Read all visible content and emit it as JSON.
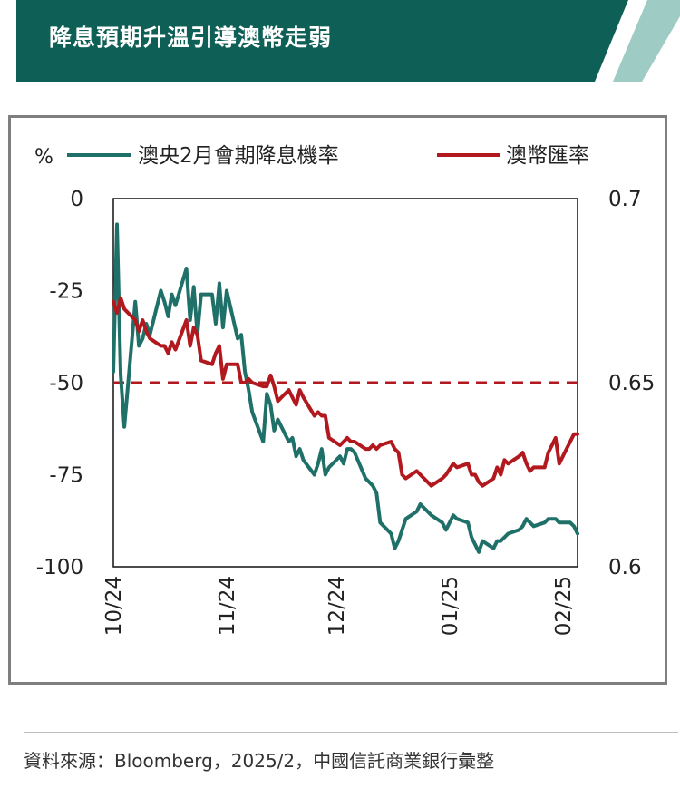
{
  "title": "降息預期升溫引導澳幣走弱",
  "source": "資料來源：Bloomberg，2025/2，中國信託商業銀行彙整",
  "colors": {
    "header_bg": "#0e5f56",
    "header_accent": "#9ecbc4",
    "series1": "#1f7068",
    "series2": "#b2191e",
    "reference_line": "#b2191e"
  },
  "chart_data": {
    "type": "line",
    "left_axis_unit": "%",
    "left_axis": {
      "ylim": [
        -100,
        0
      ],
      "ticks": [
        "0",
        "-25",
        "-50",
        "-75",
        "-100"
      ],
      "tick_values": [
        0,
        -25,
        -50,
        -75,
        -100
      ]
    },
    "right_axis": {
      "ylim": [
        0.6,
        0.7
      ],
      "ticks": [
        "0.7",
        "0.65",
        "0.6"
      ],
      "tick_values": [
        0.7,
        0.65,
        0.6
      ]
    },
    "x_ticks": [
      "10/24",
      "11/24",
      "12/24",
      "01/25",
      "02/25"
    ],
    "x_tick_dates": [
      "2024-10-01",
      "2024-11-01",
      "2024-12-01",
      "2025-01-01",
      "2025-02-01"
    ],
    "x_range": [
      "2024-10-01",
      "2025-02-05"
    ],
    "reference_line": {
      "axis": "left",
      "value": -50,
      "style": "dashed"
    },
    "series": [
      {
        "name": "澳央2月會期降息機率",
        "axis": "left",
        "x": [
          "2024-10-01",
          "2024-10-02",
          "2024-10-03",
          "2024-10-04",
          "2024-10-07",
          "2024-10-08",
          "2024-10-09",
          "2024-10-10",
          "2024-10-11",
          "2024-10-14",
          "2024-10-15",
          "2024-10-16",
          "2024-10-17",
          "2024-10-18",
          "2024-10-21",
          "2024-10-22",
          "2024-10-23",
          "2024-10-24",
          "2024-10-25",
          "2024-10-28",
          "2024-10-29",
          "2024-10-30",
          "2024-10-31",
          "2024-11-01",
          "2024-11-04",
          "2024-11-05",
          "2024-11-06",
          "2024-11-07",
          "2024-11-08",
          "2024-11-11",
          "2024-11-12",
          "2024-11-13",
          "2024-11-14",
          "2024-11-15",
          "2024-11-18",
          "2024-11-19",
          "2024-11-20",
          "2024-11-21",
          "2024-11-22",
          "2024-11-25",
          "2024-11-26",
          "2024-11-27",
          "2024-11-28",
          "2024-11-29",
          "2024-12-02",
          "2024-12-03",
          "2024-12-04",
          "2024-12-05",
          "2024-12-06",
          "2024-12-09",
          "2024-12-10",
          "2024-12-11",
          "2024-12-12",
          "2024-12-13",
          "2024-12-16",
          "2024-12-17",
          "2024-12-18",
          "2024-12-19",
          "2024-12-20",
          "2024-12-23",
          "2024-12-24",
          "2024-12-27",
          "2024-12-30",
          "2024-12-31",
          "2025-01-02",
          "2025-01-03",
          "2025-01-06",
          "2025-01-07",
          "2025-01-08",
          "2025-01-09",
          "2025-01-10",
          "2025-01-13",
          "2025-01-14",
          "2025-01-15",
          "2025-01-16",
          "2025-01-17",
          "2025-01-20",
          "2025-01-21",
          "2025-01-22",
          "2025-01-23",
          "2025-01-24",
          "2025-01-27",
          "2025-01-28",
          "2025-01-29",
          "2025-01-30",
          "2025-01-31",
          "2025-02-03",
          "2025-02-04",
          "2025-02-05"
        ],
        "values": [
          -47,
          -7,
          -48,
          -62,
          -28,
          -40,
          -38,
          -34,
          -37,
          -25,
          -28,
          -32,
          -26,
          -29,
          -19,
          -33,
          -24,
          -37,
          -26,
          -26,
          -34,
          -23,
          -35,
          -25,
          -38,
          -37,
          -47,
          -52,
          -58,
          -66,
          -53,
          -56,
          -63,
          -60,
          -66,
          -65,
          -70,
          -68,
          -71,
          -75,
          -72,
          -68,
          -75,
          -73,
          -70,
          -72,
          -68,
          -68,
          -69,
          -76,
          -77,
          -78,
          -80,
          -88,
          -91,
          -95,
          -93,
          -90,
          -87,
          -85,
          -83,
          -86,
          -88,
          -90,
          -86,
          -87,
          -88,
          -92,
          -94,
          -96,
          -93,
          -95,
          -93,
          -93,
          -92,
          -91,
          -90,
          -89,
          -87,
          -88,
          -89,
          -88,
          -87,
          -87,
          -87,
          -88,
          -88,
          -89,
          -91
        ]
      },
      {
        "name": "澳幣匯率",
        "axis": "right",
        "x": [
          "2024-10-01",
          "2024-10-02",
          "2024-10-03",
          "2024-10-04",
          "2024-10-07",
          "2024-10-08",
          "2024-10-09",
          "2024-10-10",
          "2024-10-11",
          "2024-10-14",
          "2024-10-15",
          "2024-10-16",
          "2024-10-17",
          "2024-10-18",
          "2024-10-21",
          "2024-10-22",
          "2024-10-23",
          "2024-10-24",
          "2024-10-25",
          "2024-10-28",
          "2024-10-29",
          "2024-10-30",
          "2024-10-31",
          "2024-11-01",
          "2024-11-04",
          "2024-11-05",
          "2024-11-06",
          "2024-11-07",
          "2024-11-08",
          "2024-11-11",
          "2024-11-12",
          "2024-11-13",
          "2024-11-14",
          "2024-11-15",
          "2024-11-18",
          "2024-11-19",
          "2024-11-20",
          "2024-11-21",
          "2024-11-22",
          "2024-11-25",
          "2024-11-26",
          "2024-11-27",
          "2024-11-28",
          "2024-11-29",
          "2024-12-02",
          "2024-12-03",
          "2024-12-04",
          "2024-12-05",
          "2024-12-06",
          "2024-12-09",
          "2024-12-10",
          "2024-12-11",
          "2024-12-12",
          "2024-12-13",
          "2024-12-16",
          "2024-12-17",
          "2024-12-18",
          "2024-12-19",
          "2024-12-20",
          "2024-12-23",
          "2024-12-24",
          "2024-12-27",
          "2024-12-30",
          "2024-12-31",
          "2025-01-02",
          "2025-01-03",
          "2025-01-06",
          "2025-01-07",
          "2025-01-08",
          "2025-01-09",
          "2025-01-10",
          "2025-01-13",
          "2025-01-14",
          "2025-01-15",
          "2025-01-16",
          "2025-01-17",
          "2025-01-20",
          "2025-01-21",
          "2025-01-22",
          "2025-01-23",
          "2025-01-24",
          "2025-01-27",
          "2025-01-28",
          "2025-01-29",
          "2025-01-30",
          "2025-01-31",
          "2025-02-03",
          "2025-02-04",
          "2025-02-05"
        ],
        "values": [
          0.672,
          0.669,
          0.673,
          0.67,
          0.667,
          0.664,
          0.667,
          0.664,
          0.662,
          0.66,
          0.66,
          0.658,
          0.661,
          0.659,
          0.667,
          0.66,
          0.665,
          0.663,
          0.656,
          0.655,
          0.658,
          0.66,
          0.651,
          0.655,
          0.655,
          0.65,
          0.65,
          0.651,
          0.65,
          0.649,
          0.649,
          0.652,
          0.649,
          0.645,
          0.648,
          0.646,
          0.644,
          0.648,
          0.646,
          0.641,
          0.642,
          0.641,
          0.641,
          0.635,
          0.633,
          0.634,
          0.635,
          0.634,
          0.634,
          0.632,
          0.632,
          0.633,
          0.632,
          0.633,
          0.634,
          0.632,
          0.631,
          0.625,
          0.624,
          0.626,
          0.625,
          0.622,
          0.624,
          0.625,
          0.628,
          0.627,
          0.628,
          0.625,
          0.625,
          0.623,
          0.622,
          0.624,
          0.627,
          0.625,
          0.629,
          0.628,
          0.63,
          0.631,
          0.628,
          0.626,
          0.627,
          0.627,
          0.631,
          0.633,
          0.635,
          0.628,
          0.634,
          0.636,
          0.636
        ]
      }
    ]
  }
}
